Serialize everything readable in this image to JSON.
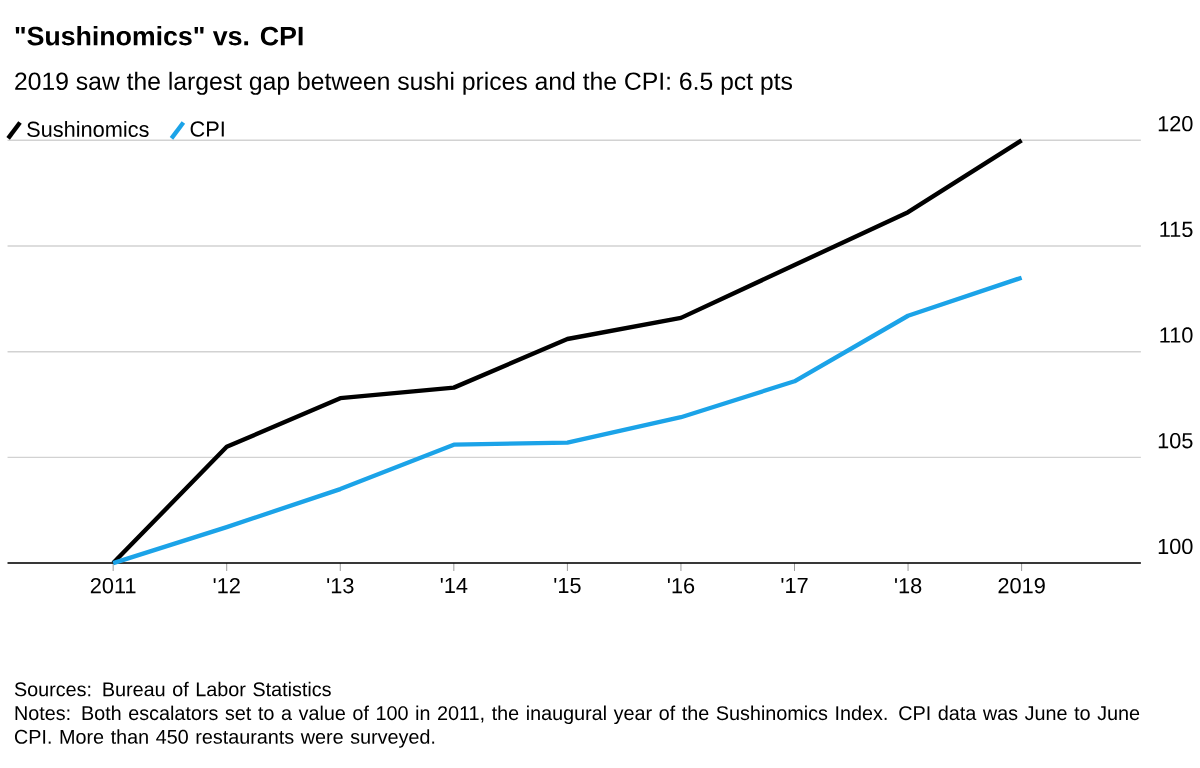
{
  "chart_data": {
    "type": "line",
    "title": "\"Sushinomics\" vs. CPI",
    "subtitle": "2019 saw the largest gap between sushi prices and the CPI: 6.5 pct pts",
    "categories": [
      "2011",
      "'12",
      "'13",
      "'14",
      "'15",
      "'16",
      "'17",
      "'18",
      "2019"
    ],
    "series": [
      {
        "name": "Sushinomics",
        "color": "#000000",
        "values": [
          100,
          105.5,
          107.8,
          108.3,
          110.6,
          111.6,
          114.1,
          116.6,
          120
        ]
      },
      {
        "name": "CPI",
        "color": "#1ba3e8",
        "values": [
          100,
          101.7,
          103.5,
          105.6,
          105.7,
          106.9,
          108.6,
          111.7,
          113.5
        ]
      }
    ],
    "ylim": [
      100,
      120
    ],
    "yticks": [
      100,
      105,
      110,
      115,
      120
    ],
    "grid": "y",
    "legend": "top left",
    "marker": "none",
    "line_style": "solid",
    "annotations": [
      "Sources: Bureau of Labor Statistics",
      "Notes: Both escalators set to a value of 100 in 2011, the inaugural year of the Sushinomics Index. CPI data was June to June CPI. More than 450 restaurants were surveyed."
    ]
  }
}
